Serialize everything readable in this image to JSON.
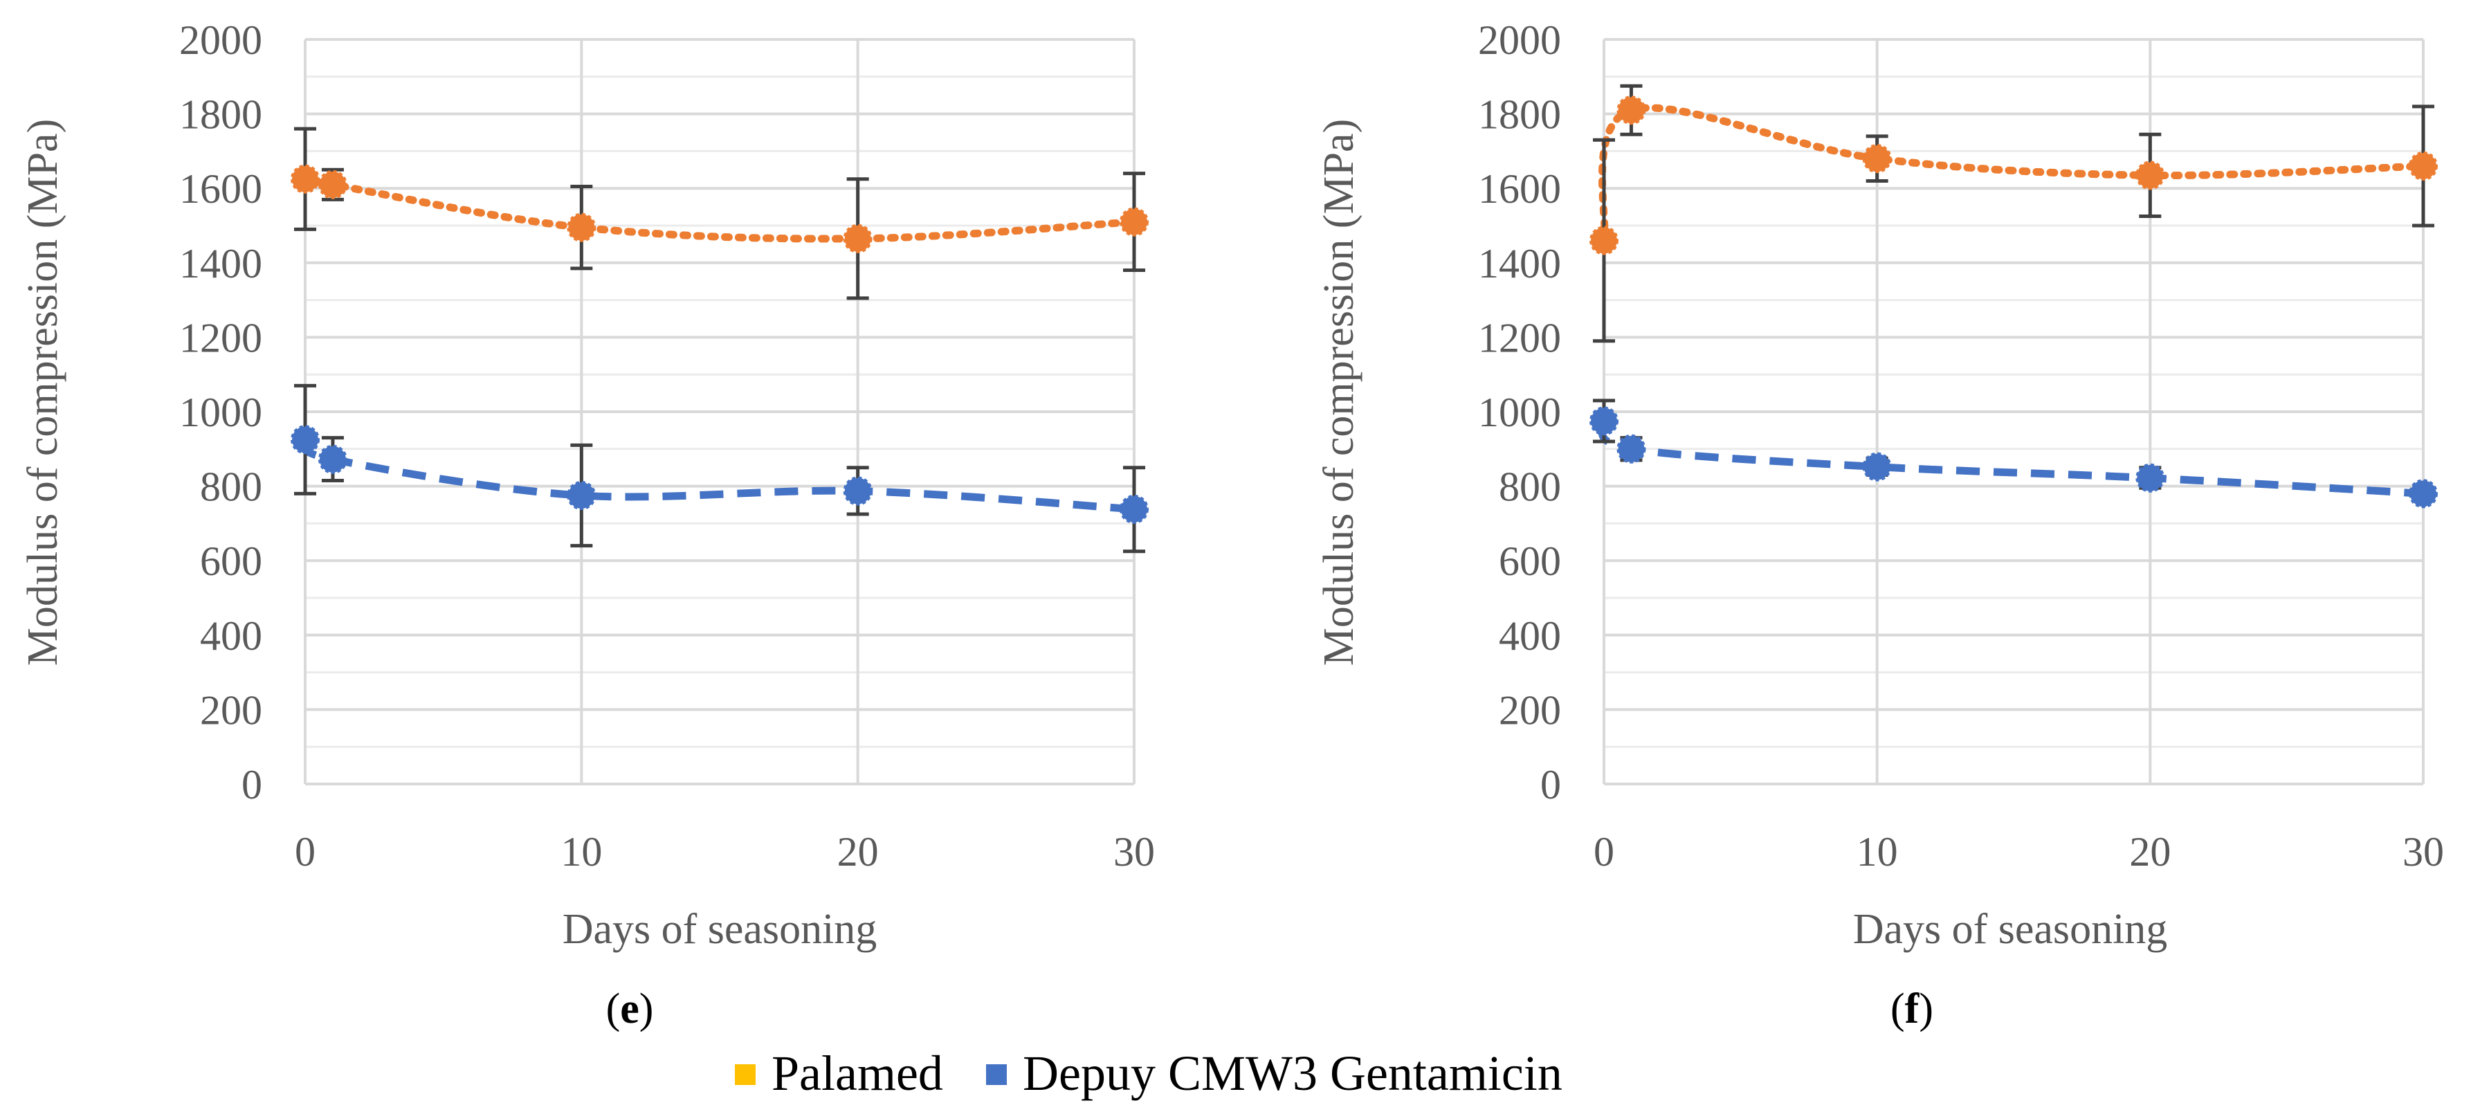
{
  "chart_data": [
    {
      "panel_label": "e",
      "type": "line",
      "xlabel": "Days of seasoning",
      "ylabel": "Modulus of compression (MPa)",
      "xlim": [
        0,
        30
      ],
      "ylim": [
        0,
        2000
      ],
      "x_ticks": [
        0,
        10,
        20,
        30
      ],
      "y_ticks": [
        0,
        200,
        400,
        600,
        800,
        1000,
        1200,
        1400,
        1600,
        1800,
        2000
      ],
      "grid": true,
      "series": [
        {
          "name": "orange-series",
          "color": "#ED7D31",
          "line_style": "dotted",
          "points": [
            {
              "x": 0,
              "y": 1625,
              "err_low": 1490,
              "err_high": 1760
            },
            {
              "x": 1,
              "y": 1610,
              "err_low": 1570,
              "err_high": 1650
            },
            {
              "x": 10,
              "y": 1495,
              "err_low": 1385,
              "err_high": 1605
            },
            {
              "x": 20,
              "y": 1465,
              "err_low": 1305,
              "err_high": 1625
            },
            {
              "x": 30,
              "y": 1510,
              "err_low": 1380,
              "err_high": 1640
            }
          ]
        },
        {
          "name": "blue-series",
          "color": "#4472C4",
          "line_style": "dashed",
          "points": [
            {
              "x": 0,
              "y": 925,
              "err_low": 780,
              "err_high": 1070
            },
            {
              "x": 1,
              "y": 872,
              "err_low": 815,
              "err_high": 930
            },
            {
              "x": 10,
              "y": 775,
              "err_low": 640,
              "err_high": 910
            },
            {
              "x": 20,
              "y": 787,
              "err_low": 725,
              "err_high": 850
            },
            {
              "x": 30,
              "y": 738,
              "err_low": 625,
              "err_high": 850
            }
          ]
        }
      ]
    },
    {
      "panel_label": "f",
      "type": "line",
      "xlabel": "Days of seasoning",
      "ylabel": "Modulus of compression (MPa)",
      "xlim": [
        0,
        30
      ],
      "ylim": [
        0,
        2000
      ],
      "x_ticks": [
        0,
        10,
        20,
        30
      ],
      "y_ticks": [
        0,
        200,
        400,
        600,
        800,
        1000,
        1200,
        1400,
        1600,
        1800,
        2000
      ],
      "grid": true,
      "series": [
        {
          "name": "orange-series",
          "color": "#ED7D31",
          "line_style": "dotted",
          "points": [
            {
              "x": 0,
              "y": 1460,
              "err_low": 1190,
              "err_high": 1730
            },
            {
              "x": 1,
              "y": 1810,
              "err_low": 1745,
              "err_high": 1875
            },
            {
              "x": 10,
              "y": 1680,
              "err_low": 1620,
              "err_high": 1740
            },
            {
              "x": 20,
              "y": 1635,
              "err_low": 1525,
              "err_high": 1745
            },
            {
              "x": 30,
              "y": 1660,
              "err_low": 1500,
              "err_high": 1820
            }
          ]
        },
        {
          "name": "blue-series",
          "color": "#4472C4",
          "line_style": "dashed",
          "points": [
            {
              "x": 0,
              "y": 975,
              "err_low": 920,
              "err_high": 1030
            },
            {
              "x": 1,
              "y": 900,
              "err_low": 870,
              "err_high": 930
            },
            {
              "x": 10,
              "y": 852,
              "err_low": 830,
              "err_high": 875
            },
            {
              "x": 20,
              "y": 822,
              "err_low": 795,
              "err_high": 850
            },
            {
              "x": 30,
              "y": 780,
              "err_low": 765,
              "err_high": 795
            }
          ]
        }
      ]
    }
  ],
  "legend": {
    "placement": "bottom-center",
    "items": [
      {
        "label": "Palamed",
        "color": "#FFC000"
      },
      {
        "label": "Depuy CMW3 Gentamicin",
        "color": "#4472C4"
      }
    ]
  },
  "colors": {
    "grid": "#D9D9D9",
    "axis_text": "#595959",
    "error_bar": "#404040",
    "panel_label": "#000000"
  }
}
